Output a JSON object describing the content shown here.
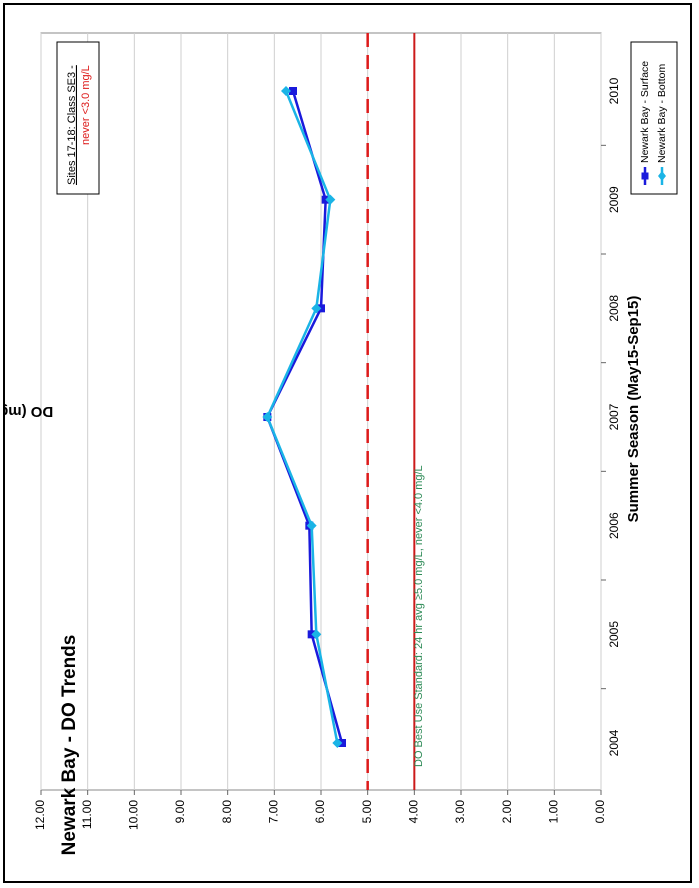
{
  "chart_data": {
    "type": "line",
    "orientation": "rotated 90 degrees counter-clockwise",
    "title": "Newark Bay - DO Trends",
    "xlabel": "Summer Season (May15-Sep15)",
    "ylabel": "DO (mg/L)",
    "categories": [
      "2004",
      "2005",
      "2006",
      "2007",
      "2008",
      "2009",
      "2010"
    ],
    "y_ticks": [
      "0.00",
      "1.00",
      "2.00",
      "3.00",
      "4.00",
      "5.00",
      "6.00",
      "7.00",
      "8.00",
      "9.00",
      "10.00",
      "11.00",
      "12.00"
    ],
    "ylim": [
      0,
      12
    ],
    "grid": true,
    "legend_position": "bottom-right",
    "series": [
      {
        "name": "Newark Bay - Surface",
        "color": "#1a1adc",
        "marker": "square",
        "values": [
          5.55,
          6.2,
          6.25,
          7.15,
          6.0,
          5.9,
          6.6
        ]
      },
      {
        "name": "Newark Bay - Bottom",
        "color": "#1ab4e6",
        "marker": "diamond",
        "values": [
          5.65,
          6.1,
          6.2,
          7.15,
          6.1,
          5.8,
          6.75
        ]
      }
    ],
    "reference_lines": [
      {
        "value": 5.0,
        "style": "dashed",
        "color": "#dd1a1a"
      },
      {
        "value": 4.0,
        "style": "solid",
        "color": "#cc1a1a"
      }
    ],
    "annotations": {
      "standard_text": "DO Best Use Standard:  24 hr avg ≥5.0 mg/L, never <4.0 mg/L",
      "box_line1": "Sites 17-18: Class SE3 -",
      "box_line2": "never <3.0 mg/L"
    }
  }
}
